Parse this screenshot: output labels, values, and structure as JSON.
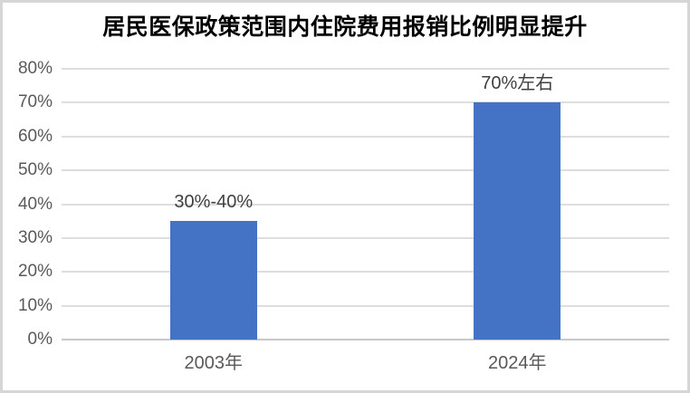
{
  "title": "居民医保政策范围内住院费用报销比例明显提升",
  "colors": {
    "bar": "#4472C4",
    "gridline": "#dedede",
    "axis_line": "#c8c8c8",
    "axis_label": "#595959",
    "data_label": "#3f3f3f",
    "title": "#000000",
    "frame_border": "#d6d6d6"
  },
  "chart_data": {
    "type": "bar",
    "title": "居民医保政策范围内住院费用报销比例明显提升",
    "categories": [
      "2003年",
      "2024年"
    ],
    "values": [
      35,
      70
    ],
    "data_labels": [
      "30%-40%",
      "70%左右"
    ],
    "unit": "%",
    "ylim": [
      0,
      80
    ],
    "ytick_step": 10,
    "ytick_values": [
      0,
      10,
      20,
      30,
      40,
      50,
      60,
      70,
      80
    ],
    "ytick_labels": [
      "0%",
      "10%",
      "20%",
      "30%",
      "40%",
      "50%",
      "60%",
      "70%",
      "80%"
    ],
    "xlabel": "",
    "ylabel": "",
    "grid": true,
    "legend": false
  }
}
